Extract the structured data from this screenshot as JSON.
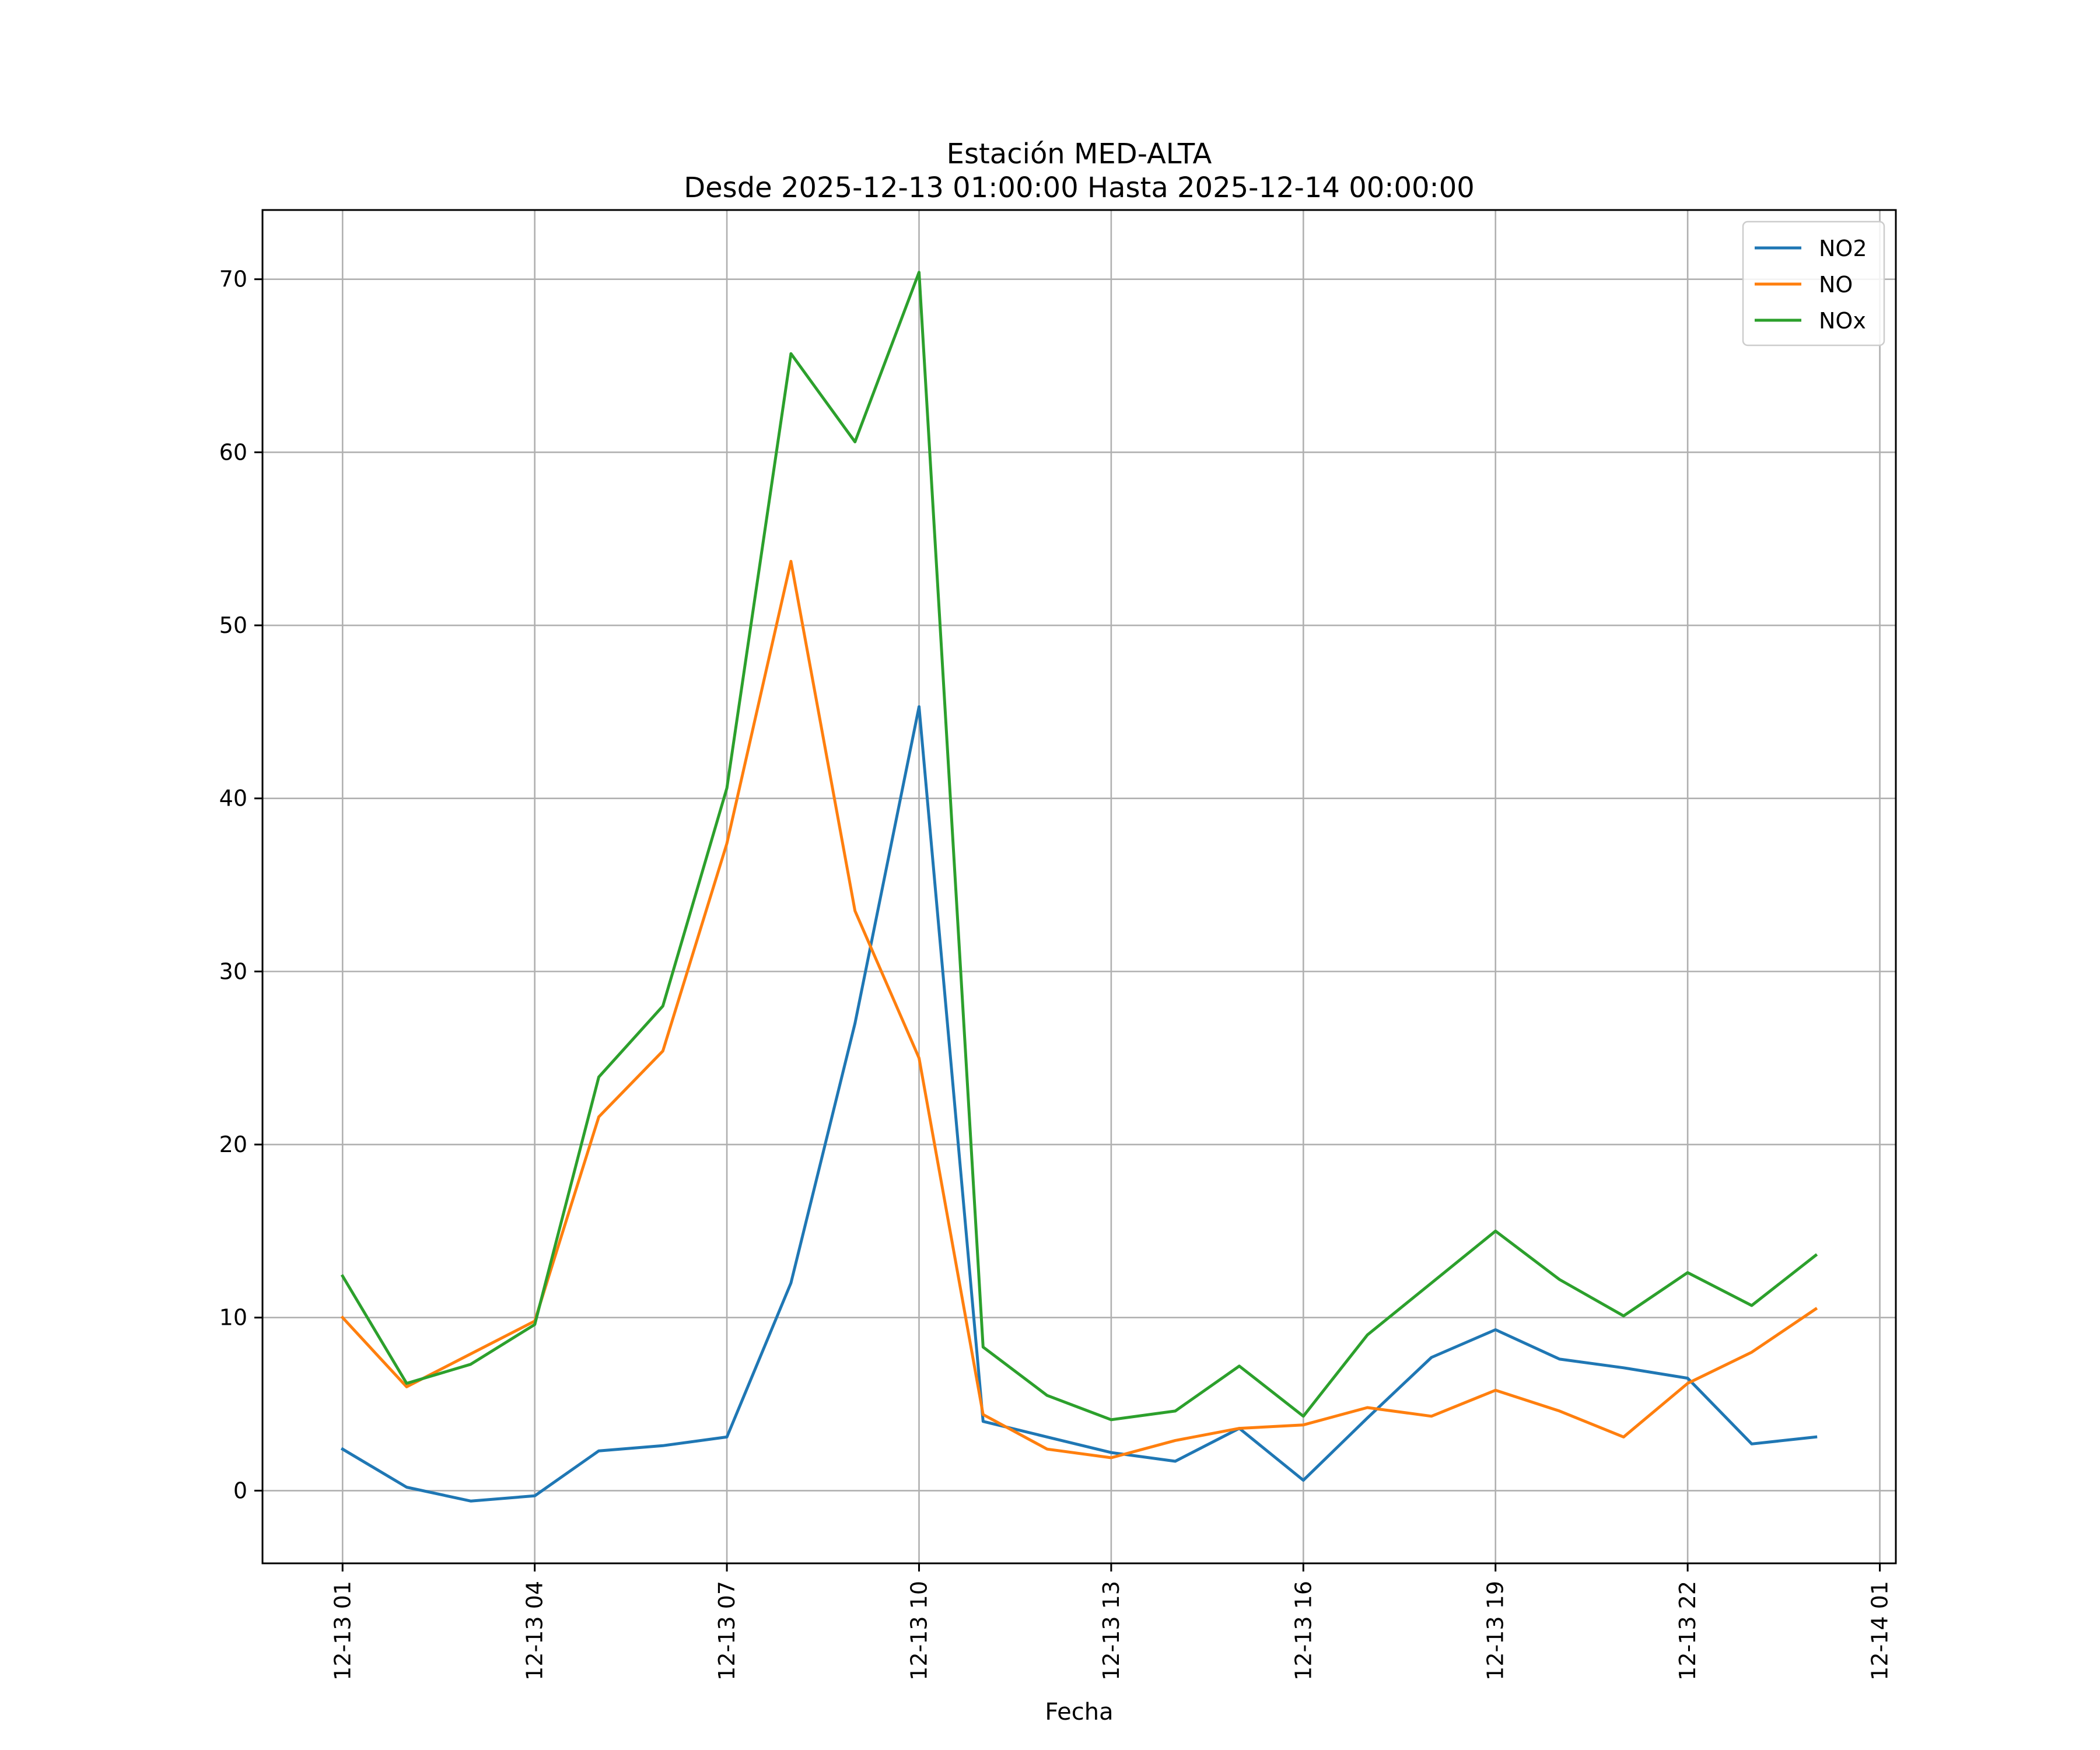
{
  "chart_data": {
    "type": "line",
    "title": [
      "Estación MED-ALTA",
      "Desde 2025-12-13 01:00:00 Hasta 2025-12-14 00:00:00"
    ],
    "xlabel": "Fecha",
    "ylabel": "",
    "x_start": "2025-12-13 01:00",
    "x_step_hours": 1,
    "x_range_hours": [
      -1.25,
      24.25
    ],
    "ylim": [
      -4.2,
      74
    ],
    "yticks": [
      0,
      10,
      20,
      30,
      40,
      50,
      60,
      70
    ],
    "xticks": [
      {
        "label": "12-13 01",
        "hour": 0
      },
      {
        "label": "12-13 04",
        "hour": 3
      },
      {
        "label": "12-13 07",
        "hour": 6
      },
      {
        "label": "12-13 10",
        "hour": 9
      },
      {
        "label": "12-13 13",
        "hour": 12
      },
      {
        "label": "12-13 16",
        "hour": 15
      },
      {
        "label": "12-13 19",
        "hour": 18
      },
      {
        "label": "12-13 22",
        "hour": 21
      },
      {
        "label": "12-14 01",
        "hour": 24
      }
    ],
    "grid": true,
    "legend_position": "top-right",
    "series": [
      {
        "name": "NO2",
        "color": "#1f77b4",
        "values": [
          2.4,
          0.2,
          -0.6,
          -0.3,
          2.3,
          2.6,
          3.1,
          12.0,
          27.0,
          45.3,
          4.0,
          3.1,
          2.2,
          1.7,
          3.6,
          0.6,
          4.2,
          7.7,
          9.3,
          7.6,
          7.1,
          6.5,
          2.7,
          3.1
        ]
      },
      {
        "name": "NO",
        "color": "#ff7f0e",
        "values": [
          10.0,
          6.0,
          7.9,
          9.8,
          21.6,
          25.4,
          37.4,
          53.7,
          33.5,
          25.0,
          4.4,
          2.4,
          1.9,
          2.9,
          3.6,
          3.8,
          4.8,
          4.3,
          5.8,
          4.6,
          3.1,
          6.2,
          8.0,
          10.5
        ]
      },
      {
        "name": "NOx",
        "color": "#2ca02c",
        "values": [
          12.4,
          6.2,
          7.3,
          9.6,
          23.9,
          28.0,
          40.6,
          65.7,
          60.6,
          70.4,
          8.3,
          5.5,
          4.1,
          4.6,
          7.2,
          4.3,
          9.0,
          12.0,
          15.0,
          12.2,
          10.1,
          12.6,
          10.7,
          13.6
        ]
      }
    ]
  }
}
